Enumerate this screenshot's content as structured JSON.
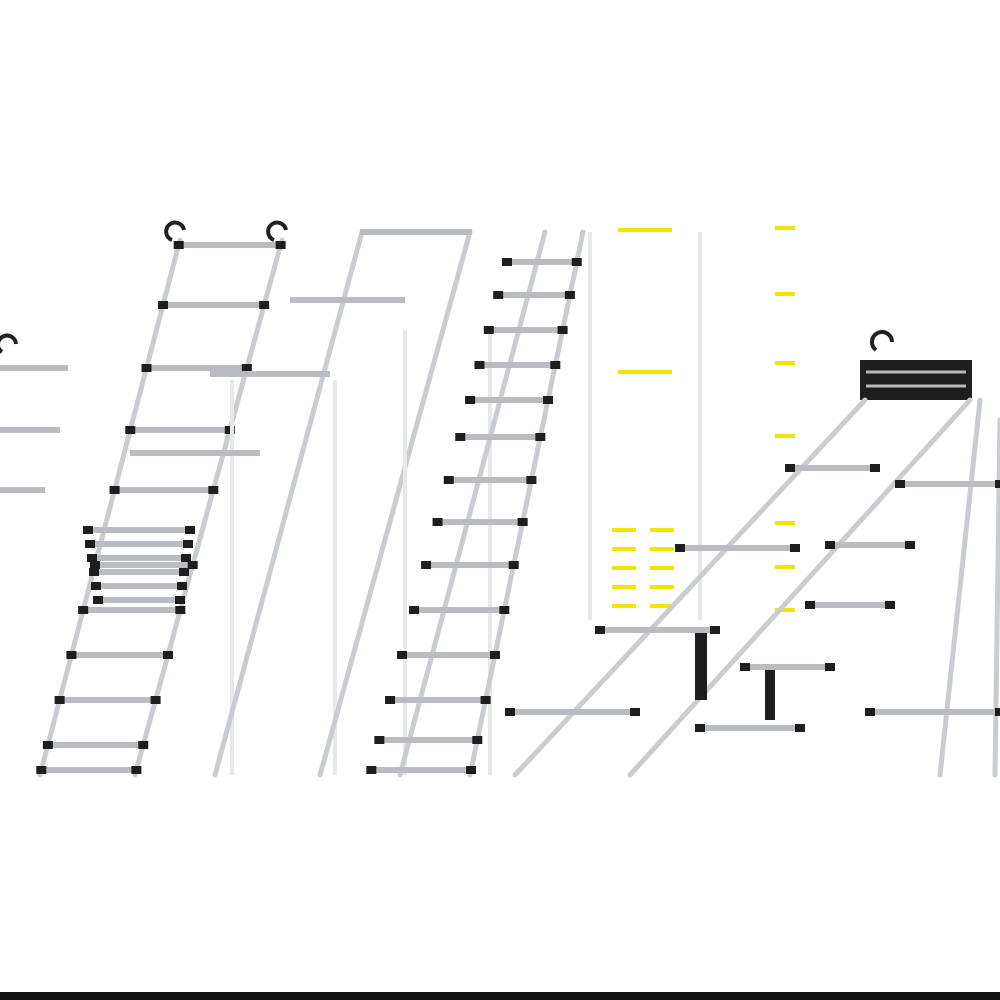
{
  "image": {
    "subject": "telescopic-aluminium-ladders",
    "colors": {
      "background": "#ffffff",
      "rail": "#c9ccd0",
      "end_caps": "#1e1e1e",
      "markings": "#f2e500",
      "accent": "#e0503c"
    }
  }
}
